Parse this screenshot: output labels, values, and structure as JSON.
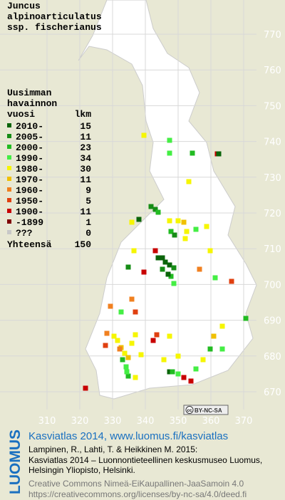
{
  "title": [
    "Juncus",
    "alpinoarticulatus",
    "ssp. fischerianus"
  ],
  "legend": {
    "heading": [
      "Uusimman",
      "havainnon"
    ],
    "col_year": "vuosi",
    "col_count": "lkm",
    "rows": [
      {
        "label": "2010-",
        "count": 15,
        "color": "#0a640a"
      },
      {
        "label": "2005-",
        "count": 11,
        "color": "#168c16"
      },
      {
        "label": "2000-",
        "count": 23,
        "color": "#22bb22"
      },
      {
        "label": "1990-",
        "count": 34,
        "color": "#44ee44"
      },
      {
        "label": "1980-",
        "count": 30,
        "color": "#f6f600"
      },
      {
        "label": "1970-",
        "count": 11,
        "color": "#f0c000"
      },
      {
        "label": "1960-",
        "count": 9,
        "color": "#f08020"
      },
      {
        "label": "1950-",
        "count": 5,
        "color": "#e04010"
      },
      {
        "label": "1900-",
        "count": 11,
        "color": "#c80000"
      },
      {
        "label": "-1899",
        "count": 1,
        "color": "#800000"
      },
      {
        "label": "???",
        "count": 0,
        "color": "#c8c8c8"
      }
    ],
    "total_label": "Yhteensä",
    "total": 150
  },
  "grid": {
    "x_labels": [
      310,
      320,
      330,
      340,
      350,
      360,
      370
    ],
    "y_labels": [
      770,
      760,
      750,
      740,
      730,
      720,
      710,
      700,
      690,
      680,
      670
    ]
  },
  "license_badge": {
    "icon": "cc",
    "text": "BY-NC-SA"
  },
  "footer": {
    "logo": "LUOMUS",
    "link": "Kasviatlas 2014, www.luomus.fi/kasviatlas",
    "citation": [
      "Lampinen, R., Lahti, T. & Heikkinen M. 2015:",
      "Kasviatlas 2014 – Luonnontieteellinen keskusmuseo Luomus,",
      "Helsingin Yliopisto, Helsinki."
    ],
    "license": [
      "Creative Commons Nimeä-EiKaupallinen-JaaSamoin 4.0",
      "https://creativecommons.org/licenses/by-nc-sa/4.0/deed.fi"
    ]
  }
}
